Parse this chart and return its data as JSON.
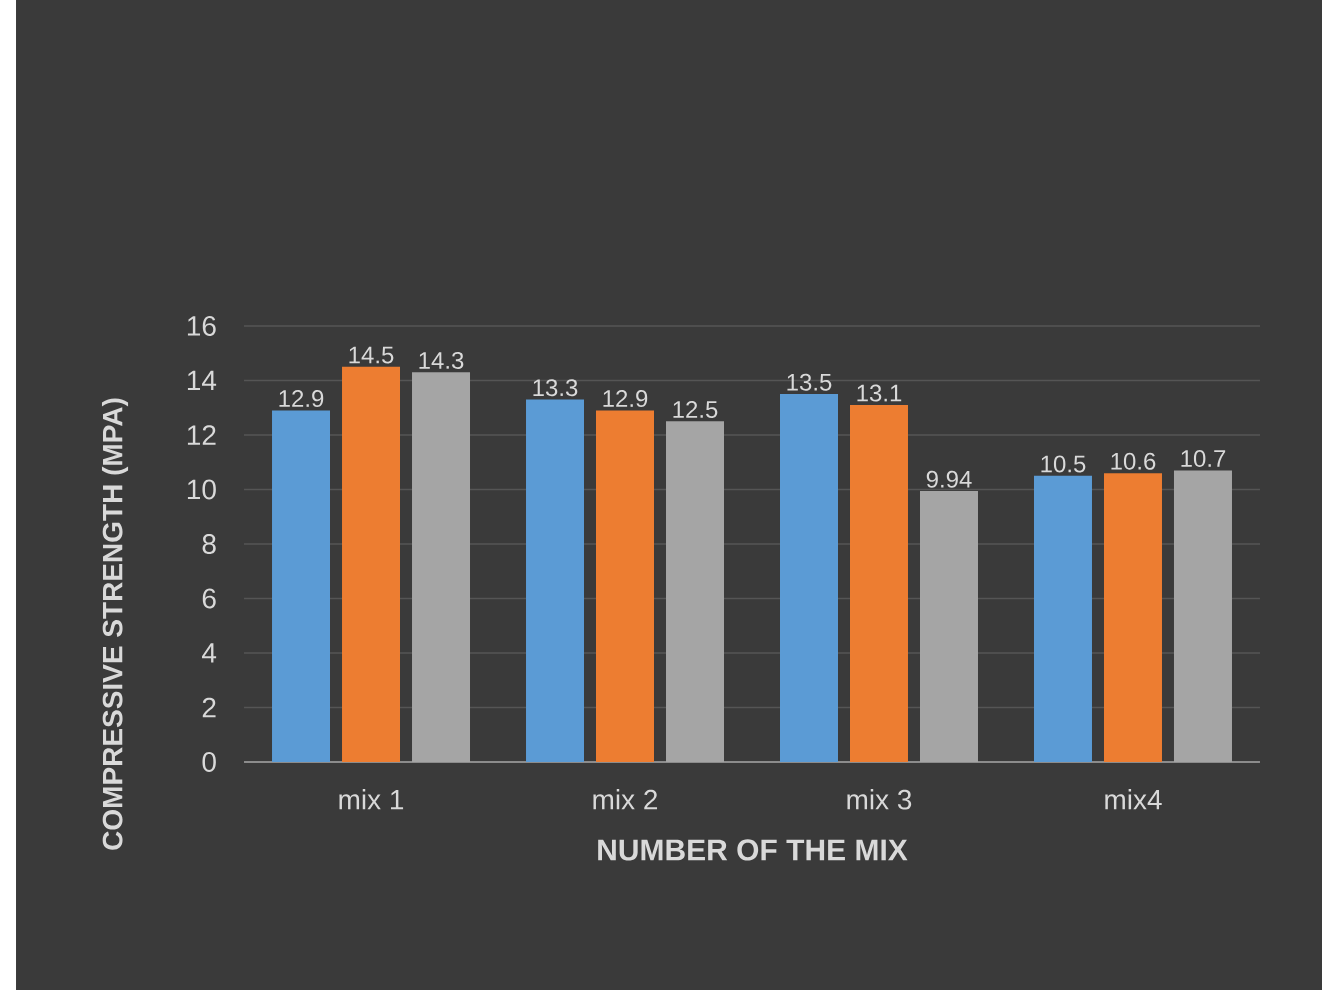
{
  "chart_data": {
    "type": "bar",
    "xlabel": "NUMBER OF THE MIX",
    "ylabel": "COMPRESSIVE STRENGTH (MPA)",
    "categories": [
      "mix 1",
      "mix 2",
      "mix 3",
      "mix4"
    ],
    "series": [
      {
        "color": "#5b9bd5",
        "values": [
          12.9,
          13.3,
          13.5,
          10.5
        ]
      },
      {
        "color": "#ed7d31",
        "values": [
          14.5,
          12.9,
          13.1,
          10.6
        ]
      },
      {
        "color": "#a5a5a5",
        "values": [
          14.3,
          12.5,
          9.94,
          10.7
        ]
      }
    ],
    "ylim": [
      0,
      16
    ],
    "yticks": [
      0,
      2,
      4,
      6,
      8,
      10,
      12,
      14,
      16
    ],
    "grid": "y",
    "data_labels": true
  }
}
